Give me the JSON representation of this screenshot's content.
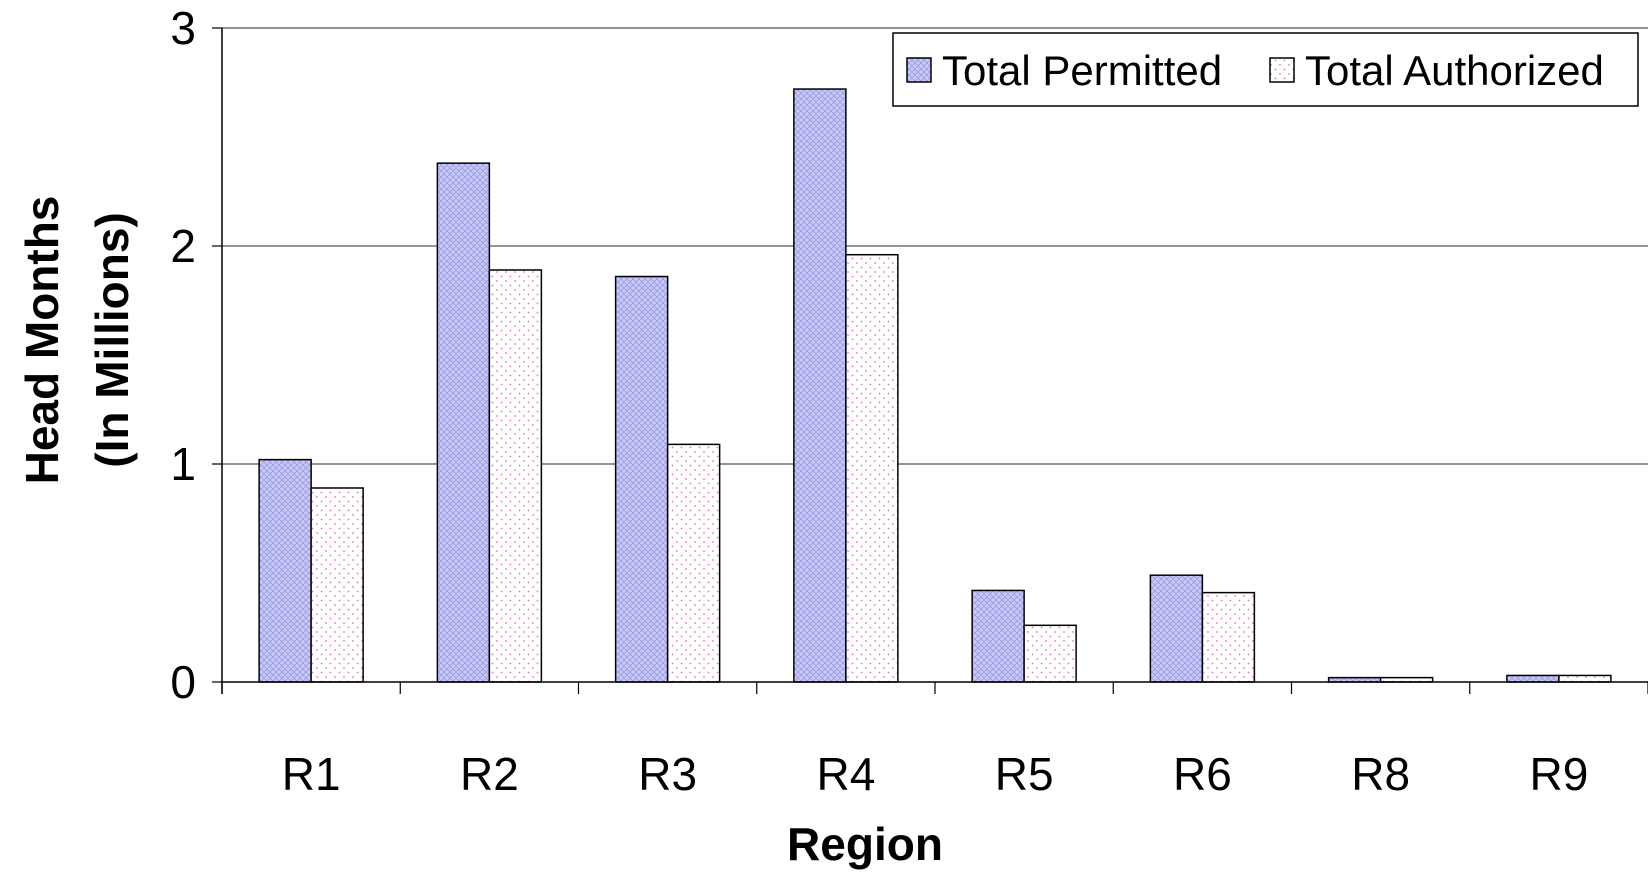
{
  "chart_data": {
    "type": "bar",
    "categories": [
      "R1",
      "R2",
      "R3",
      "R4",
      "R5",
      "R6",
      "R8",
      "R9"
    ],
    "series": [
      {
        "name": "Total Permitted",
        "values": [
          1.02,
          2.38,
          1.86,
          2.72,
          0.42,
          0.49,
          0.02,
          0.03
        ],
        "color": "#c9c9f5"
      },
      {
        "name": "Total Authorized",
        "values": [
          0.89,
          1.89,
          1.09,
          1.96,
          0.26,
          0.41,
          0.02,
          0.03
        ],
        "color": "#ffffff"
      }
    ],
    "xlabel": "Region",
    "ylabel_line1": "Head Months",
    "ylabel_line2": "(In Millions)",
    "ylim": [
      0,
      3
    ],
    "yticks": [
      "0",
      "1",
      "2",
      "3"
    ],
    "grid": true,
    "legend_position": "top-right"
  }
}
